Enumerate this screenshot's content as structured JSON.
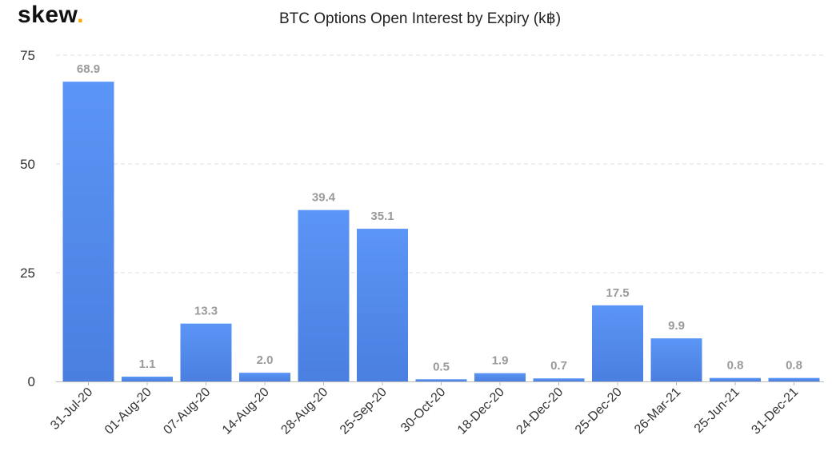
{
  "brand": {
    "name": "skew",
    "dot": "."
  },
  "chart_data": {
    "type": "bar",
    "title": "BTC Options Open Interest by Expiry (k฿)",
    "xlabel": "",
    "ylabel": "",
    "categories": [
      "31-Jul-20",
      "01-Aug-20",
      "07-Aug-20",
      "14-Aug-20",
      "28-Aug-20",
      "25-Sep-20",
      "30-Oct-20",
      "18-Dec-20",
      "24-Dec-20",
      "25-Dec-20",
      "26-Mar-21",
      "25-Jun-21",
      "31-Dec-21"
    ],
    "values": [
      68.9,
      1.1,
      13.3,
      2.0,
      39.4,
      35.1,
      0.5,
      1.9,
      0.7,
      17.5,
      9.9,
      0.8,
      0.8
    ],
    "value_labels": [
      "68.9",
      "1.1",
      "13.3",
      "2.0",
      "39.4",
      "35.1",
      "0.5",
      "1.9",
      "0.7",
      "17.5",
      "9.9",
      "0.8",
      "0.8"
    ],
    "ylim": [
      0,
      75
    ],
    "yticks": [
      "0",
      "25",
      "50",
      "75"
    ],
    "grid": true,
    "colors": {
      "bar_top": "#5b95f5",
      "bar_bottom": "#4a7fe0",
      "grid": "#dddddd",
      "axis": "#bbbbbb"
    }
  }
}
